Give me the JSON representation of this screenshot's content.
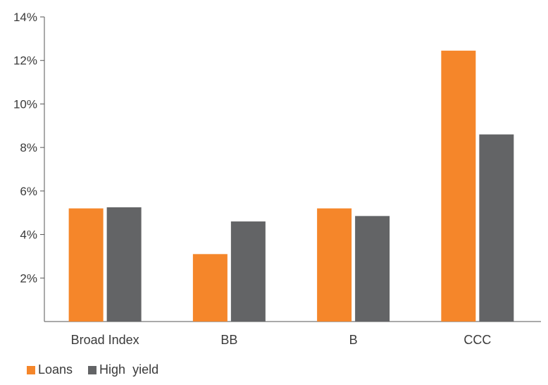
{
  "chart_data": {
    "type": "bar",
    "categories": [
      "Broad Index",
      "BB",
      "B",
      "CCC"
    ],
    "series": [
      {
        "name": "Loans",
        "values": [
          5.2,
          3.1,
          5.2,
          12.45
        ],
        "color": "#f5862a"
      },
      {
        "name": "High  yield",
        "values": [
          5.25,
          4.6,
          4.85,
          8.6
        ],
        "color": "#636466"
      }
    ],
    "y_ticks": [
      2,
      4,
      6,
      8,
      10,
      12,
      14
    ],
    "y_tick_labels": [
      "2%",
      "4%",
      "6%",
      "8%",
      "10%",
      "12%",
      "14%"
    ],
    "ylim": [
      0,
      14
    ],
    "grid": false,
    "legend_position": "bottom-left",
    "axis_color": "#555555"
  }
}
